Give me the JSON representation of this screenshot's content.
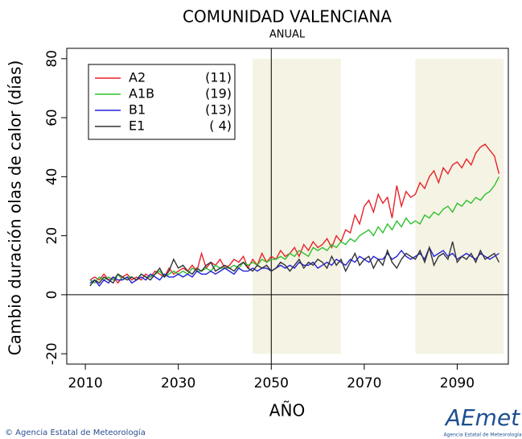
{
  "chart_data": {
    "type": "line",
    "title": "COMUNIDAD VALENCIANA",
    "subtitle": "ANUAL",
    "x_label": "AÑO",
    "y_label": "Cambio duración olas de calor (días)",
    "xlim": [
      2006,
      2101
    ],
    "ylim": [
      -23.5,
      83.5
    ],
    "xticks": [
      2010,
      2030,
      2050,
      2070,
      2090
    ],
    "yticks": [
      -20,
      0,
      20,
      40,
      60,
      80
    ],
    "vline": 2050,
    "hline": 0,
    "periods": [
      [
        2046,
        2065
      ],
      [
        2081,
        2100
      ]
    ],
    "period_color": "#f5f3e4",
    "legend_position": "upper left",
    "x": [
      2011,
      2012,
      2013,
      2014,
      2015,
      2016,
      2017,
      2018,
      2019,
      2020,
      2021,
      2022,
      2023,
      2024,
      2025,
      2026,
      2027,
      2028,
      2029,
      2030,
      2031,
      2032,
      2033,
      2034,
      2035,
      2036,
      2037,
      2038,
      2039,
      2040,
      2041,
      2042,
      2043,
      2044,
      2045,
      2046,
      2047,
      2048,
      2049,
      2050,
      2051,
      2052,
      2053,
      2054,
      2055,
      2056,
      2057,
      2058,
      2059,
      2060,
      2061,
      2062,
      2063,
      2064,
      2065,
      2066,
      2067,
      2068,
      2069,
      2070,
      2071,
      2072,
      2073,
      2074,
      2075,
      2076,
      2077,
      2078,
      2079,
      2080,
      2081,
      2082,
      2083,
      2084,
      2085,
      2086,
      2087,
      2088,
      2089,
      2090,
      2091,
      2092,
      2093,
      2094,
      2095,
      2096,
      2097,
      2098,
      2099
    ],
    "series": [
      {
        "name": "A2",
        "members": "(11)",
        "color": "#e8222a",
        "values": [
          5,
          6,
          5,
          7,
          5,
          6,
          4,
          6,
          7,
          5,
          6,
          5,
          7,
          6,
          8,
          7,
          6,
          9,
          7,
          8,
          9,
          8,
          10,
          8,
          14,
          9,
          11,
          10,
          12,
          9,
          10,
          12,
          11,
          13,
          9,
          12,
          10,
          14,
          11,
          13,
          12,
          15,
          13,
          14,
          16,
          13,
          17,
          15,
          18,
          16,
          17,
          19,
          16,
          20,
          18,
          22,
          21,
          27,
          24,
          30,
          32,
          28,
          34,
          31,
          33,
          26,
          37,
          30,
          35,
          33,
          34,
          38,
          36,
          40,
          42,
          38,
          43,
          41,
          44,
          45,
          43,
          46,
          44,
          48,
          50,
          51,
          49,
          47,
          41
        ]
      },
      {
        "name": "A1B",
        "members": "(19)",
        "color": "#2dc02d",
        "values": [
          5,
          4,
          6,
          5,
          6,
          5,
          7,
          5,
          6,
          6,
          5,
          7,
          6,
          6,
          7,
          8,
          6,
          7,
          8,
          7,
          8,
          7,
          9,
          8,
          8,
          9,
          8,
          10,
          9,
          9,
          9,
          10,
          9,
          11,
          10,
          11,
          10,
          12,
          11,
          12,
          12,
          13,
          12,
          14,
          13,
          15,
          14,
          13,
          16,
          15,
          16,
          15,
          17,
          16,
          18,
          17,
          19,
          18,
          20,
          21,
          22,
          20,
          23,
          21,
          24,
          22,
          25,
          23,
          26,
          24,
          25,
          24,
          27,
          26,
          28,
          27,
          29,
          30,
          28,
          31,
          30,
          32,
          31,
          33,
          32,
          34,
          35,
          37,
          40
        ]
      },
      {
        "name": "B1",
        "members": "(13)",
        "color": "#2222dd",
        "values": [
          4,
          5,
          3,
          5,
          4,
          6,
          5,
          5,
          6,
          4,
          5,
          6,
          5,
          7,
          6,
          5,
          7,
          6,
          6,
          7,
          6,
          7,
          6,
          8,
          7,
          7,
          8,
          7,
          8,
          9,
          8,
          7,
          9,
          8,
          8,
          9,
          8,
          9,
          9,
          8,
          9,
          10,
          9,
          10,
          9,
          11,
          10,
          10,
          11,
          9,
          10,
          11,
          10,
          12,
          11,
          10,
          12,
          11,
          13,
          12,
          11,
          13,
          12,
          12,
          14,
          12,
          13,
          15,
          13,
          12,
          13,
          14,
          12,
          16,
          13,
          14,
          15,
          13,
          14,
          12,
          13,
          14,
          13,
          12,
          14,
          13,
          12,
          13,
          14
        ]
      },
      {
        "name": "E1",
        "members": "( 4)",
        "color": "#333333",
        "values": [
          3,
          5,
          4,
          6,
          5,
          4,
          7,
          6,
          5,
          6,
          5,
          7,
          6,
          5,
          7,
          9,
          6,
          8,
          12,
          9,
          10,
          8,
          7,
          9,
          8,
          10,
          11,
          8,
          9,
          10,
          9,
          8,
          10,
          11,
          9,
          8,
          10,
          9,
          10,
          8,
          9,
          11,
          10,
          8,
          10,
          12,
          9,
          11,
          10,
          12,
          11,
          9,
          13,
          10,
          12,
          8,
          11,
          14,
          10,
          12,
          13,
          9,
          12,
          10,
          15,
          11,
          9,
          12,
          14,
          13,
          12,
          15,
          11,
          16,
          10,
          13,
          14,
          12,
          18,
          11,
          13,
          12,
          14,
          11,
          15,
          12,
          13,
          14,
          11
        ]
      }
    ],
    "footer": "© Agencia Estatal de Meteorología",
    "logo": "AEmet",
    "logo_subtitle": "Agencia Estatal de Meteorología"
  }
}
